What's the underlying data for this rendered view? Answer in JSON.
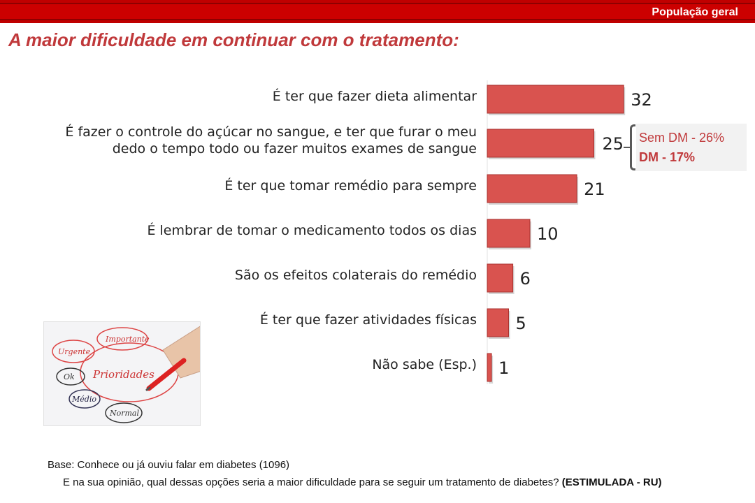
{
  "header": {
    "badge": "População geral",
    "title": "A maior dificuldade em continuar com o tratamento:"
  },
  "colors": {
    "bar": "#d9534f",
    "bar_edge": "#a8322f",
    "accent": "#c0393b"
  },
  "chart_data": {
    "type": "bar",
    "orientation": "horizontal",
    "categories": [
      "É ter que fazer dieta alimentar",
      "É fazer o controle do açúcar no sangue, e ter que furar o meu dedo o tempo todo ou fazer muitos exames de sangue",
      "É ter que tomar remédio para sempre",
      "É lembrar de tomar o medicamento todos os dias",
      "São os efeitos colaterais do remédio",
      "É ter que fazer atividades físicas",
      "Não sabe (Esp.)"
    ],
    "category_lines": [
      [
        "É ter que fazer dieta alimentar"
      ],
      [
        "É fazer o controle do açúcar no sangue, e ter que furar o meu",
        "dedo o tempo todo ou fazer muitos exames de sangue"
      ],
      [
        "É ter que tomar remédio para sempre"
      ],
      [
        "É lembrar de tomar o medicamento todos os dias"
      ],
      [
        "São os efeitos colaterais do remédio"
      ],
      [
        "É ter que fazer atividades físicas"
      ],
      [
        "Não sabe (Esp.)"
      ]
    ],
    "values": [
      32,
      25,
      21,
      10,
      6,
      5,
      1
    ],
    "value_labels": [
      "32",
      "25",
      "21",
      "10",
      "6",
      "5",
      "1"
    ],
    "annotation": {
      "category_index": 1,
      "line1": "Sem DM - 26%",
      "line2": "DM - 17%"
    },
    "xlim": [
      0,
      32
    ],
    "grid": false,
    "legend": "none"
  },
  "illustration": {
    "words": [
      "Importante",
      "Urgente",
      "Prioridades",
      "Ok",
      "Médio",
      "Normal"
    ]
  },
  "footer": {
    "base": "Base: Conhece ou já ouviu falar em diabetes  (1096)",
    "question": "E na sua opinião, qual dessas opções  seria a maior dificuldade para se seguir um tratamento de diabetes?",
    "question_tag": "(ESTIMULADA - RU)"
  }
}
